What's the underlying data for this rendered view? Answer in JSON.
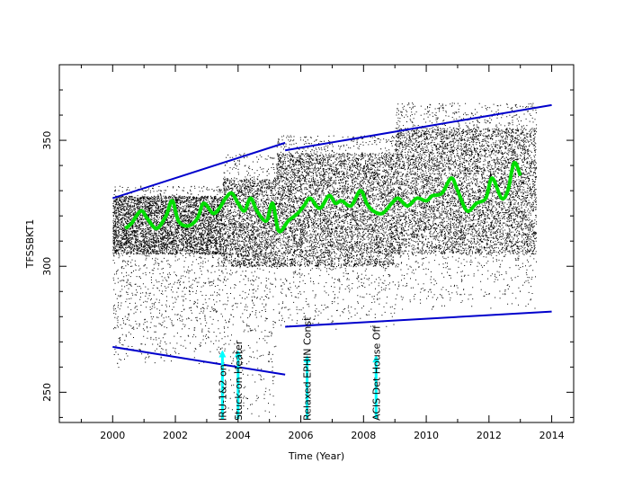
{
  "chart_data": {
    "type": "scatter",
    "title": "",
    "xlabel": "Time (Year)",
    "ylabel": "TFSSBKT1",
    "xlim": [
      1998.3,
      2014.7
    ],
    "ylim": [
      238,
      380
    ],
    "x_ticks": [
      2000,
      2002,
      2004,
      2006,
      2008,
      2010,
      2012,
      2014
    ],
    "y_ticks": [
      250,
      300,
      350
    ],
    "grid": false,
    "legend": "none",
    "colors": {
      "data": "#000000",
      "smooth": "#00dd00",
      "envelope": "#0000cc",
      "events": "#00ffff",
      "frame": "#000000"
    },
    "series": [
      {
        "kind": "scatter-density",
        "color": "#000000",
        "x_range": [
          2000.0,
          2013.5
        ],
        "bands": [
          {
            "x": [
              2000.0,
              2003.5
            ],
            "y_lo": 260,
            "y_hi": 332,
            "core": [
              305,
              328
            ]
          },
          {
            "x": [
              2003.5,
              2005.2
            ],
            "y_lo": 240,
            "y_hi": 345,
            "core": [
              300,
              335
            ]
          },
          {
            "x": [
              2005.2,
              2009.0
            ],
            "y_lo": 275,
            "y_hi": 352,
            "core": [
              300,
              345
            ]
          },
          {
            "x": [
              2009.0,
              2013.5
            ],
            "y_lo": 283,
            "y_hi": 365,
            "core": [
              305,
              355
            ]
          }
        ]
      },
      {
        "kind": "smooth",
        "color": "#00dd00",
        "x": [
          2000.4,
          2000.6,
          2000.9,
          2001.1,
          2001.4,
          2001.7,
          2001.9,
          2002.1,
          2002.4,
          2002.7,
          2002.9,
          2003.2,
          2003.4,
          2003.6,
          2003.8,
          2004.0,
          2004.2,
          2004.4,
          2004.6,
          2004.9,
          2005.1,
          2005.3,
          2005.6,
          2005.9,
          2006.1,
          2006.3,
          2006.6,
          2006.9,
          2007.1,
          2007.3,
          2007.6,
          2007.9,
          2008.1,
          2008.3,
          2008.6,
          2008.9,
          2009.1,
          2009.4,
          2009.7,
          2010.0,
          2010.2,
          2010.5,
          2010.8,
          2011.0,
          2011.3,
          2011.6,
          2011.9,
          2012.1,
          2012.4,
          2012.6,
          2012.8,
          2013.0
        ],
        "y": [
          315,
          317,
          322,
          319,
          315,
          320,
          326,
          318,
          316,
          319,
          325,
          321,
          323,
          327,
          329,
          325,
          322,
          327,
          322,
          318,
          325,
          314,
          318,
          321,
          324,
          327,
          323,
          328,
          325,
          326,
          324,
          330,
          325,
          322,
          321,
          325,
          327,
          324,
          327,
          326,
          328,
          329,
          335,
          330,
          322,
          325,
          327,
          335,
          327,
          330,
          341,
          336
        ]
      },
      {
        "kind": "envelope",
        "name": "upper",
        "color": "#0000cc",
        "segments": [
          {
            "x": [
              2000.0,
              2005.5
            ],
            "y": [
              327,
              349
            ]
          },
          {
            "x": [
              2005.5,
              2014.0
            ],
            "y": [
              346,
              364
            ]
          }
        ]
      },
      {
        "kind": "envelope",
        "name": "lower",
        "color": "#0000cc",
        "segments": [
          {
            "x": [
              2000.0,
              2005.5
            ],
            "y": [
              268,
              257
            ]
          },
          {
            "x": [
              2005.5,
              2014.0
            ],
            "y": [
              276,
              282
            ]
          }
        ]
      }
    ],
    "events": [
      {
        "x": 2003.5,
        "y": 266,
        "label": "IRU-1&2 on"
      },
      {
        "x": 2004.0,
        "y": 266,
        "label": "Stuck-on Heater"
      },
      {
        "x": 2006.2,
        "y": 264,
        "label": "Relaxed EPHIN Const"
      },
      {
        "x": 2008.4,
        "y": 264,
        "label": "ACIS Det House Off"
      }
    ]
  }
}
